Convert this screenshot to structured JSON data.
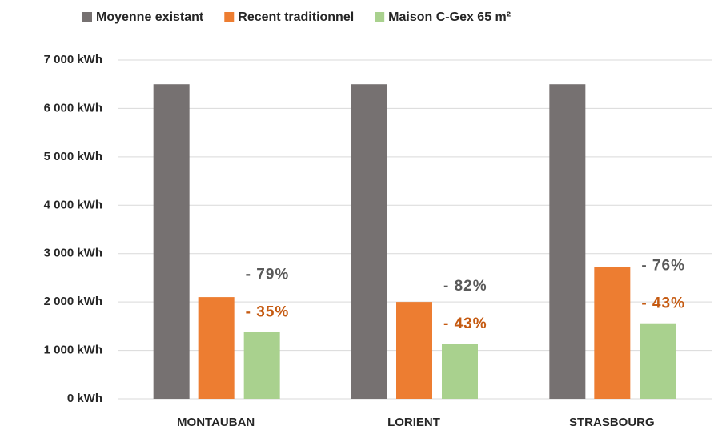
{
  "chart_data": {
    "type": "bar",
    "categories": [
      "MONTAUBAN",
      "LORIENT",
      "STRASBOURG"
    ],
    "series": [
      {
        "name": "Moyenne existant",
        "color": "#767171",
        "values": [
          6500,
          6500,
          6500
        ]
      },
      {
        "name": "Recent traditionnel",
        "color": "#ed7d31",
        "values": [
          2100,
          2000,
          2730
        ]
      },
      {
        "name": "Maison C-Gex 65 m²",
        "color": "#a9d18e",
        "values": [
          1380,
          1140,
          1560
        ]
      }
    ],
    "annotations": {
      "vs_existing": {
        "color": "#595959",
        "texts": [
          "- 79%",
          "- 82%",
          "- 76%"
        ]
      },
      "vs_recent": {
        "color": "#c55a11",
        "texts": [
          "- 35%",
          "- 43%",
          "- 43%"
        ]
      }
    },
    "ylim": [
      0,
      7000
    ],
    "yticks": [
      {
        "value": 0,
        "label": "0 kWh"
      },
      {
        "value": 1000,
        "label": "1 000 kWh"
      },
      {
        "value": 2000,
        "label": "2 000 kWh"
      },
      {
        "value": 3000,
        "label": "3 000 kWh"
      },
      {
        "value": 4000,
        "label": "4 000 kWh"
      },
      {
        "value": 5000,
        "label": "5 000 kWh"
      },
      {
        "value": 6000,
        "label": "6 000 kWh"
      },
      {
        "value": 7000,
        "label": "7 000 kWh"
      }
    ],
    "grid": true,
    "legend": "top"
  }
}
